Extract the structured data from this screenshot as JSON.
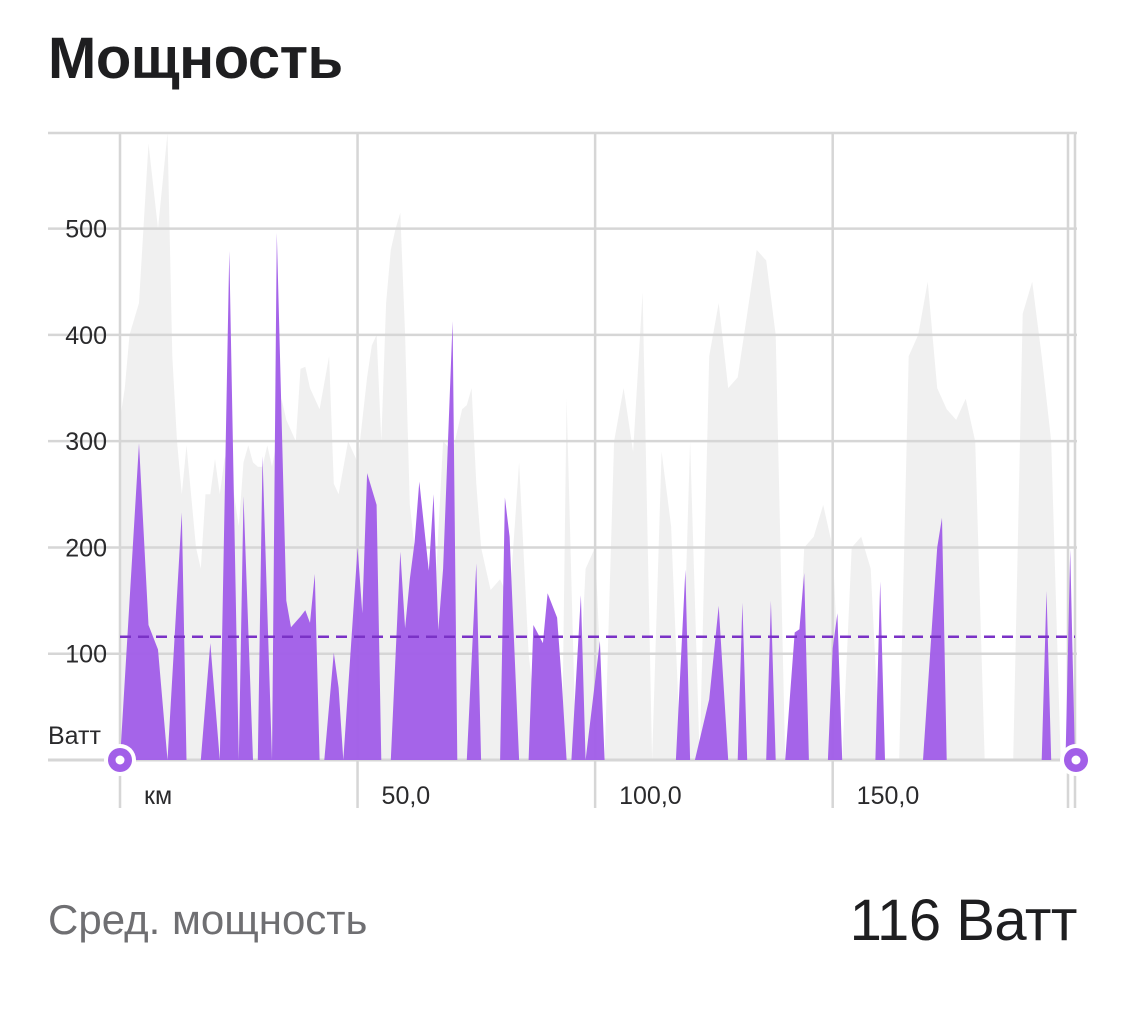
{
  "header": {
    "title": "Мощность"
  },
  "summary": {
    "label": "Сред. мощность",
    "value": "116 Ватт"
  },
  "colors": {
    "power": "#a25fe8",
    "elevation": "#efefef",
    "grid": "#d6d6d6",
    "average_line": "#7a32c6",
    "handle": "#a25fe8"
  },
  "chart_data": {
    "type": "area",
    "ylabel": "Ватт",
    "xlabel": "км",
    "ylim": [
      0,
      590
    ],
    "xlim": [
      0,
      201
    ],
    "y_ticks": [
      100,
      200,
      300,
      400,
      500
    ],
    "y_tick_labels": [
      "100",
      "200",
      "300",
      "400",
      "500"
    ],
    "x_ticks": [
      50,
      100,
      150
    ],
    "x_tick_labels": [
      "50,0",
      "100,0",
      "150,0"
    ],
    "average": 116,
    "grid": true,
    "series": [
      {
        "role": "power",
        "x": [
          0,
          4,
          6,
          8,
          10,
          13,
          14,
          17,
          19,
          21,
          23,
          25,
          26,
          28,
          29,
          30,
          32,
          33,
          35,
          36,
          37,
          38,
          39,
          40,
          41,
          42,
          43,
          45,
          46,
          47,
          50,
          51,
          52,
          54,
          55,
          57,
          59,
          60,
          61,
          62,
          63,
          65,
          66,
          67,
          68,
          70,
          71,
          73,
          75,
          76,
          77,
          78,
          80,
          81,
          82,
          84,
          85,
          86,
          87,
          89,
          90,
          92,
          93,
          94,
          95,
          97,
          98,
          101,
          102,
          103,
          104,
          106,
          108,
          108.5,
          109,
          111,
          112,
          113,
          115,
          116,
          117,
          119,
          120,
          121,
          124,
          126,
          128,
          129,
          130,
          131,
          132,
          133,
          134,
          136,
          137,
          138,
          139,
          140,
          142,
          143,
          144,
          145,
          146,
          147,
          148,
          149,
          150,
          151,
          152,
          153,
          154,
          156,
          157,
          158,
          159,
          160,
          161,
          162,
          164,
          165,
          166,
          168,
          169,
          172,
          173,
          174,
          175,
          176,
          177,
          180,
          181,
          182,
          183,
          185,
          186,
          187,
          188,
          189,
          191,
          192,
          193,
          194,
          195,
          196,
          197,
          198,
          199,
          200,
          201
        ],
        "y": [
          0,
          298,
          127,
          104,
          0,
          233,
          0,
          0,
          110,
          0,
          479,
          0,
          248,
          0,
          0,
          286,
          0,
          496,
          150,
          125,
          130,
          135,
          141,
          129,
          175,
          0,
          0,
          101,
          68,
          0,
          200,
          138,
          270,
          240,
          0,
          0,
          196,
          124,
          170,
          205,
          262,
          178,
          250,
          122,
          180,
          413,
          0,
          0,
          185,
          0,
          0,
          0,
          0,
          247,
          210,
          0,
          0,
          0,
          127,
          110,
          157,
          134,
          72,
          0,
          0,
          155,
          0,
          112,
          0,
          0,
          0,
          0,
          0,
          0,
          0,
          0,
          0,
          0,
          0,
          0,
          0,
          179,
          0,
          0,
          57,
          145,
          0,
          0,
          0,
          148,
          0,
          0,
          0,
          0,
          150,
          0,
          0,
          0,
          120,
          123,
          176,
          0,
          0,
          0,
          0,
          0,
          105,
          138,
          0,
          0,
          0,
          0,
          0,
          0,
          0,
          168,
          0,
          0,
          0,
          0,
          0,
          0,
          0,
          200,
          228,
          0,
          0,
          0,
          0,
          0,
          0,
          0,
          0,
          0,
          0,
          0,
          0,
          0,
          0,
          0,
          0,
          0,
          159,
          0,
          0,
          0,
          0,
          198,
          0
        ]
      },
      {
        "role": "elevation-background",
        "x": [
          0,
          1,
          2,
          4,
          6,
          8,
          10,
          11,
          12,
          13,
          14,
          16,
          17,
          18,
          19,
          20,
          21,
          22,
          23,
          24,
          25,
          26,
          27,
          28,
          29,
          30,
          31,
          32,
          33,
          34,
          35,
          37,
          38,
          39,
          40,
          42,
          44,
          45,
          46,
          48,
          50,
          52,
          53,
          54,
          55,
          56,
          57,
          58,
          59,
          60,
          61,
          62,
          63,
          64,
          66,
          68,
          70,
          72,
          73,
          74,
          75,
          76,
          77,
          78,
          80,
          82,
          84,
          86,
          87,
          88,
          90,
          92,
          93,
          94,
          96,
          98,
          100,
          102,
          104,
          106,
          108,
          110,
          112,
          114,
          116,
          118,
          120,
          122,
          124,
          126,
          128,
          130,
          132,
          134,
          136,
          138,
          140,
          142,
          144,
          146,
          148,
          150,
          152,
          154,
          156,
          158,
          160,
          162,
          164,
          166,
          168,
          170,
          172,
          174,
          176,
          178,
          180,
          182,
          184,
          186,
          188,
          190,
          192,
          194,
          196,
          198,
          200,
          201
        ],
        "y": [
          320,
          350,
          400,
          430,
          580,
          500,
          590,
          380,
          300,
          250,
          296,
          200,
          180,
          250,
          250,
          283,
          250,
          283,
          296,
          250,
          220,
          280,
          296,
          280,
          276,
          276,
          296,
          276,
          300,
          340,
          320,
          300,
          368,
          370,
          350,
          330,
          380,
          260,
          250,
          300,
          280,
          360,
          390,
          400,
          300,
          430,
          480,
          500,
          515,
          400,
          240,
          200,
          160,
          150,
          130,
          300,
          290,
          330,
          334,
          350,
          260,
          200,
          180,
          160,
          170,
          150,
          280,
          100,
          60,
          40,
          0,
          0,
          0,
          340,
          0,
          180,
          200,
          0,
          300,
          350,
          290,
          440,
          0,
          290,
          220,
          0,
          300,
          0,
          380,
          430,
          350,
          360,
          420,
          480,
          470,
          400,
          0,
          0,
          200,
          210,
          240,
          200,
          0,
          200,
          210,
          180,
          0,
          0,
          0,
          380,
          400,
          450,
          350,
          330,
          320,
          340,
          300,
          0,
          0,
          0,
          0,
          420,
          450,
          380,
          300,
          0,
          0,
          0
        ]
      }
    ]
  }
}
